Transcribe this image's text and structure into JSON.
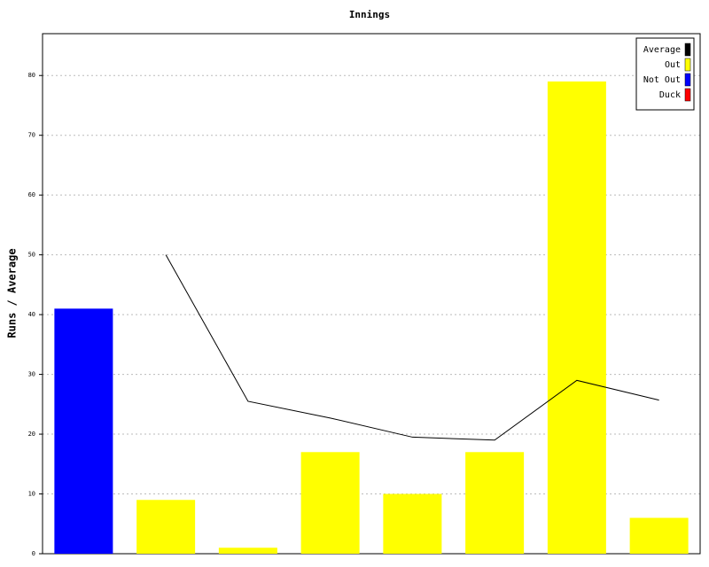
{
  "chart_data": {
    "type": "bar",
    "title": "Innings",
    "y_label": "Runs / Average",
    "categories": [
      null,
      null,
      null,
      null,
      null,
      null,
      null,
      null
    ],
    "series": [
      {
        "name": "Average",
        "type": "line",
        "color": "#000000",
        "values": [
          null,
          50,
          25.5,
          22.7,
          19.5,
          19,
          29,
          25.7
        ]
      },
      {
        "name": "Out",
        "type": "bar",
        "color": "#ffff00",
        "values": [
          null,
          9,
          1,
          17,
          10,
          17,
          79,
          6
        ]
      },
      {
        "name": "Not Out",
        "type": "bar",
        "color": "#0000ff",
        "values": [
          41,
          null,
          null,
          null,
          null,
          null,
          null,
          null
        ]
      },
      {
        "name": "Duck",
        "type": "bar",
        "color": "#ff0000",
        "values": [
          null,
          null,
          null,
          null,
          null,
          null,
          null,
          null
        ]
      }
    ],
    "ylim": [
      0,
      87
    ],
    "yticks": [
      0,
      10,
      20,
      30,
      40,
      50,
      60,
      70,
      80
    ],
    "grid": true,
    "legend": "top-right"
  }
}
